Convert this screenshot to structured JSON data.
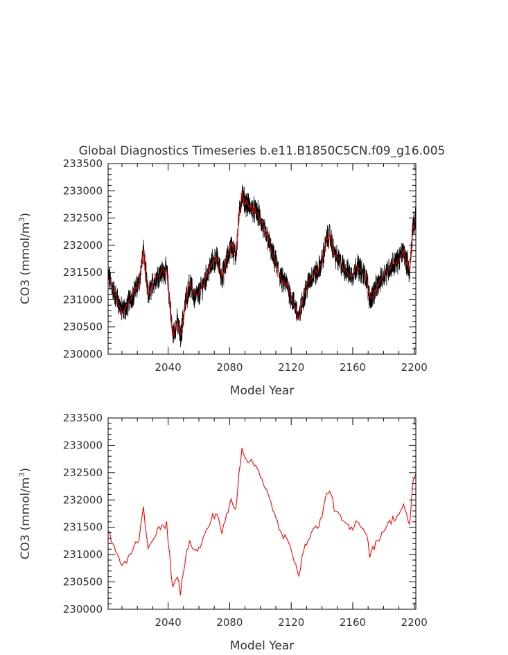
{
  "chart_data": [
    {
      "type": "line",
      "title": "Global Diagnostics Timeseries b.e11.B1850C5CN.f09_g16.005",
      "xlabel": "Model Year",
      "ylabel_main": "CO3 (mmol/m",
      "ylabel_sup": "3",
      "ylabel_close": ")",
      "xlim": [
        2001,
        2201
      ],
      "ylim": [
        230000,
        233500
      ],
      "xticks": [
        2040,
        2080,
        2120,
        2160,
        2200
      ],
      "yticks": [
        230000,
        230500,
        231000,
        231500,
        232000,
        232500,
        233000,
        233500
      ],
      "colors": {
        "monthly": "#000000",
        "annual": "#ff0000"
      },
      "series": [
        {
          "key": "monthly",
          "resolution": "monthly"
        },
        {
          "key": "annual",
          "resolution": "annual"
        }
      ],
      "anchors_x": [
        2001,
        2004,
        2007,
        2010,
        2013,
        2015,
        2018,
        2021,
        2024,
        2027,
        2030,
        2033,
        2036,
        2039,
        2041,
        2043,
        2046,
        2048,
        2051,
        2054,
        2057,
        2060,
        2063,
        2066,
        2069,
        2072,
        2075,
        2078,
        2081,
        2084,
        2086,
        2088,
        2090,
        2093,
        2096,
        2099,
        2102,
        2105,
        2108,
        2111,
        2114,
        2117,
        2120,
        2123,
        2125,
        2128,
        2131,
        2134,
        2137,
        2140,
        2143,
        2145,
        2148,
        2151,
        2154,
        2157,
        2160,
        2163,
        2166,
        2169,
        2171,
        2174,
        2177,
        2180,
        2183,
        2186,
        2189,
        2191,
        2193,
        2195,
        2197,
        2199,
        2201
      ],
      "anchors_y": [
        231450,
        231200,
        231000,
        230800,
        230850,
        231000,
        231150,
        231300,
        231900,
        231050,
        231300,
        231450,
        231500,
        231550,
        231000,
        230350,
        230600,
        230300,
        230900,
        231300,
        231050,
        231100,
        231300,
        231500,
        231700,
        231750,
        231400,
        231700,
        232000,
        231800,
        232500,
        232950,
        232800,
        232700,
        232650,
        232550,
        232300,
        232100,
        231800,
        231600,
        231350,
        231300,
        231050,
        230850,
        230650,
        231050,
        231300,
        231450,
        231500,
        231700,
        232100,
        232200,
        231850,
        231700,
        231600,
        231500,
        231450,
        231650,
        231500,
        231400,
        231000,
        231150,
        231300,
        231450,
        231550,
        231650,
        231700,
        231800,
        231900,
        231700,
        231500,
        232350,
        232450
      ]
    },
    {
      "type": "line",
      "title": "",
      "xlabel": "Model Year",
      "ylabel_main": "CO3 (mmol/m",
      "ylabel_sup": "3",
      "ylabel_close": ")",
      "xlim": [
        2001,
        2201
      ],
      "ylim": [
        230000,
        233500
      ],
      "xticks": [
        2040,
        2080,
        2120,
        2160,
        2200
      ],
      "yticks": [
        230000,
        230500,
        231000,
        231500,
        232000,
        232500,
        233000,
        233500
      ],
      "colors": {
        "annual": "#ff0000"
      },
      "series": [
        {
          "key": "annual",
          "resolution": "annual"
        }
      ],
      "anchors_x": [
        2001,
        2004,
        2007,
        2010,
        2013,
        2015,
        2018,
        2021,
        2024,
        2027,
        2030,
        2033,
        2036,
        2039,
        2041,
        2043,
        2046,
        2048,
        2051,
        2054,
        2057,
        2060,
        2063,
        2066,
        2069,
        2072,
        2075,
        2078,
        2081,
        2084,
        2086,
        2088,
        2090,
        2093,
        2096,
        2099,
        2102,
        2105,
        2108,
        2111,
        2114,
        2117,
        2120,
        2123,
        2125,
        2128,
        2131,
        2134,
        2137,
        2140,
        2143,
        2145,
        2148,
        2151,
        2154,
        2157,
        2160,
        2163,
        2166,
        2169,
        2171,
        2174,
        2177,
        2180,
        2183,
        2186,
        2189,
        2191,
        2193,
        2195,
        2197,
        2199,
        2201
      ],
      "anchors_y": [
        231450,
        231200,
        231000,
        230800,
        230850,
        231000,
        231150,
        231300,
        231900,
        231050,
        231300,
        231450,
        231500,
        231550,
        231000,
        230350,
        230600,
        230300,
        230900,
        231300,
        231050,
        231100,
        231300,
        231500,
        231700,
        231750,
        231400,
        231700,
        232000,
        231800,
        232500,
        232950,
        232800,
        232700,
        232650,
        232550,
        232300,
        232100,
        231800,
        231600,
        231350,
        231300,
        231050,
        230850,
        230650,
        231050,
        231300,
        231450,
        231500,
        231700,
        232100,
        232200,
        231850,
        231700,
        231600,
        231500,
        231450,
        231650,
        231500,
        231400,
        231000,
        231150,
        231300,
        231450,
        231550,
        231650,
        231700,
        231800,
        231900,
        231700,
        231500,
        232350,
        232450
      ]
    }
  ]
}
